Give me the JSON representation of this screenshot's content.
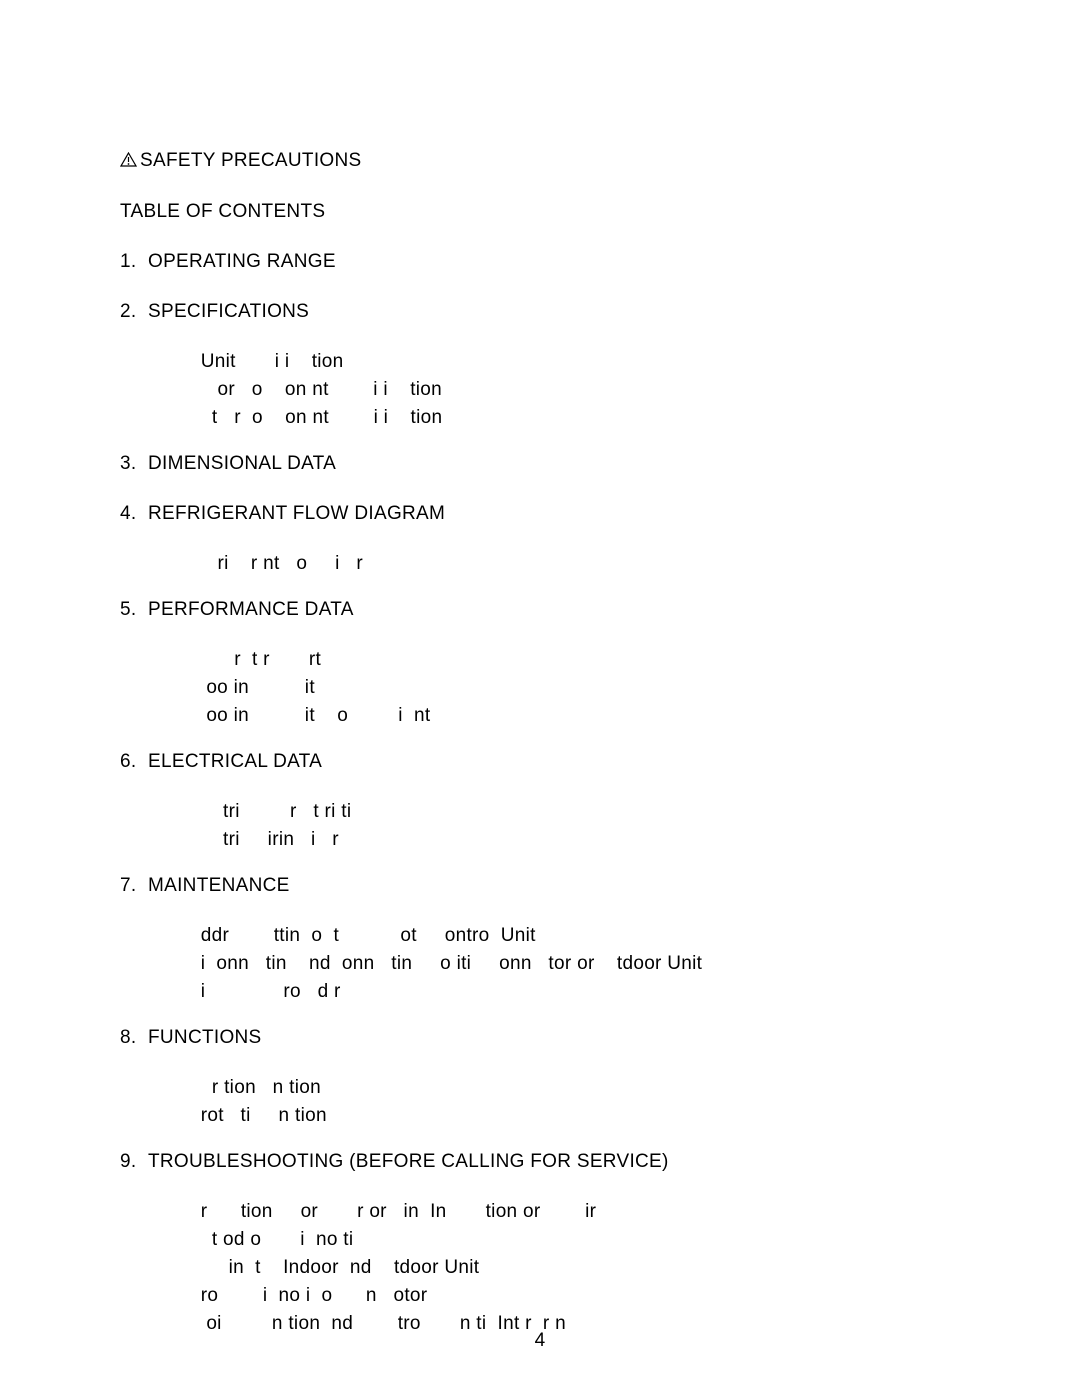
{
  "safety_label": "SAFETY PRECAUTIONS",
  "toc_title": "TABLE OF CONTENTS",
  "sections": [
    {
      "num": "1.",
      "title": "OPERATING RANGE",
      "subs": []
    },
    {
      "num": "2.",
      "title": "SPECIFICATIONS",
      "subs": [
        "   Unit       i i    tion ",
        "      or   o    on nt        i i    tion ",
        "     t   r  o    on nt        i i    tion "
      ]
    },
    {
      "num": "3.",
      "title": "DIMENSIONAL DATA",
      "subs": []
    },
    {
      "num": "4.",
      "title": "REFRIGERANT FLOW DIAGRAM",
      "subs": [
        "      ri    r nt   o     i   r  "
      ]
    },
    {
      "num": "5.",
      "title": "PERFORMANCE DATA",
      "subs": [
        "         r  t r       rt ",
        "    oo in          it ",
        "    oo in          it    o         i  nt "
      ]
    },
    {
      "num": "6.",
      "title": "ELECTRICAL DATA",
      "subs": [
        "       tri         r   t ri ti  ",
        "       tri     irin   i   r  "
      ]
    },
    {
      "num": "7.",
      "title": "MAINTENANCE",
      "subs": [
        "   ddr        ttin  o  t           ot     ontro  Unit ",
        "   i  onn   tin    nd  onn   tin     o iti     onn   tor or    tdoor Unit ",
        "   i              ro   d r "
      ]
    },
    {
      "num": "8.",
      "title": "FUNCTIONS",
      "subs": [
        "     r tion   n tion ",
        "   rot   ti     n tion "
      ]
    },
    {
      "num": "9.",
      "title": "TROUBLESHOOTING (BEFORE CALLING FOR SERVICE)",
      "subs": [
        "   r      tion     or       r or   in  In       tion or        ir ",
        "     t od o       i  no ti  ",
        "        in  t    Indoor  nd    tdoor Unit ",
        "   ro        i  no i  o      n   otor ",
        "    oi         n tion  nd        tro       n ti  Int r  r n   "
      ]
    }
  ],
  "page_number": "4",
  "text_color": "#000000",
  "background_color": "#ffffff",
  "font_size": 19
}
